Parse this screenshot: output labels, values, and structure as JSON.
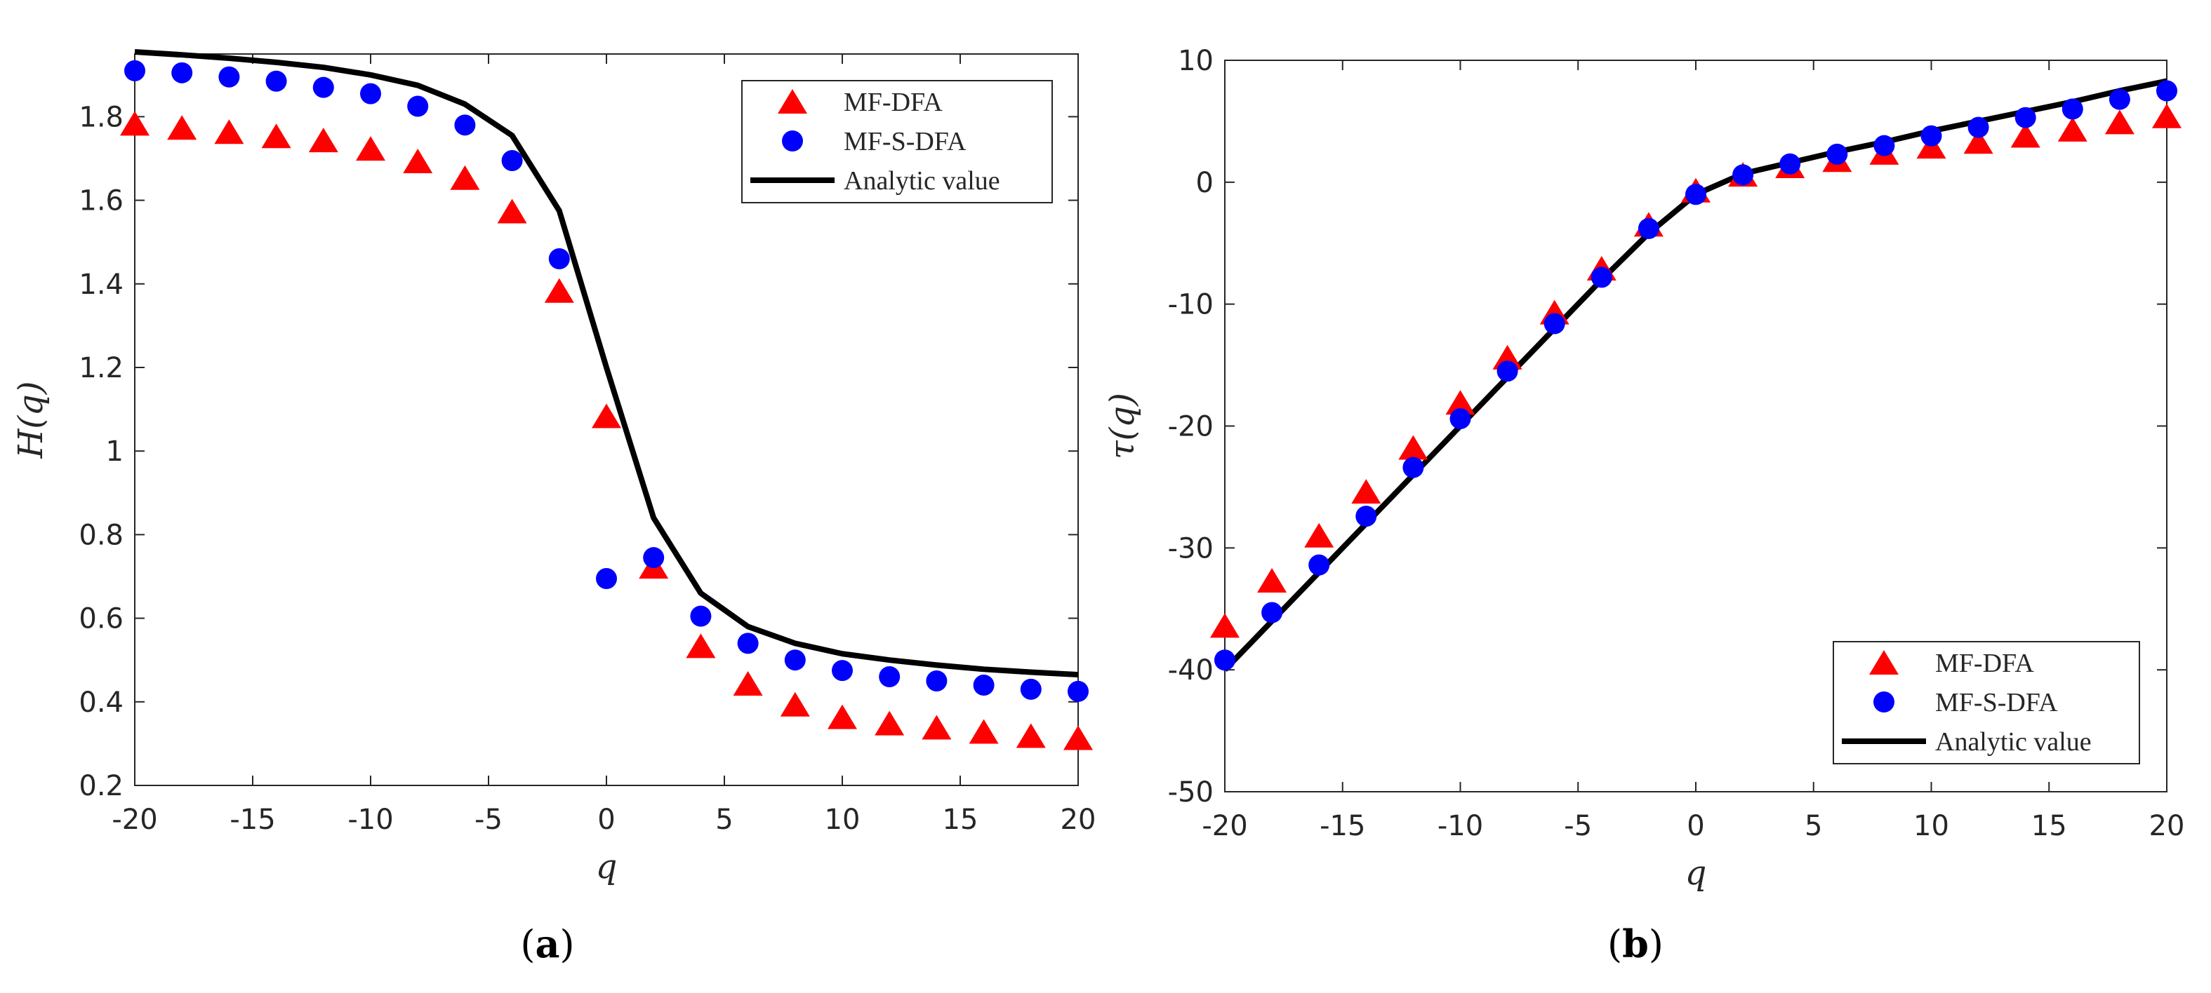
{
  "colors": {
    "mfdfa": "#ff0000",
    "mfsdfa": "#0000ff",
    "analytic": "#000000",
    "axis": "#262626"
  },
  "chart_data": [
    {
      "id": "a",
      "type": "scatter",
      "panel_label": "a",
      "xlabel": "q",
      "ylabel": "H(q)",
      "xlim": [
        -20,
        20
      ],
      "ylim": [
        0.2,
        1.95
      ],
      "xticks": [
        -20,
        -15,
        -10,
        -5,
        0,
        5,
        10,
        15,
        20
      ],
      "xtick_labels": [
        "-20",
        "-15",
        "-10",
        "-5",
        "0",
        "5",
        "10",
        "15",
        "20"
      ],
      "yticks": [
        0.2,
        0.4,
        0.6,
        0.8,
        1,
        1.2,
        1.4,
        1.6,
        1.8
      ],
      "ytick_labels": [
        "0.2",
        "0.4",
        "0.6",
        "0.8",
        "1",
        "1.2",
        "1.4",
        "1.6",
        "1.8"
      ],
      "legend_position": "top-right",
      "series": [
        {
          "name": "MF-DFA",
          "marker": "triangle",
          "color": "#ff0000",
          "x": [
            -20,
            -18,
            -16,
            -14,
            -12,
            -10,
            -8,
            -6,
            -4,
            -2,
            0,
            2,
            4,
            6,
            8,
            10,
            12,
            14,
            16,
            18,
            20
          ],
          "y": [
            1.78,
            1.77,
            1.76,
            1.75,
            1.74,
            1.72,
            1.69,
            1.65,
            1.57,
            1.38,
            1.08,
            0.72,
            0.53,
            0.44,
            0.39,
            0.36,
            0.345,
            0.335,
            0.325,
            0.315,
            0.31
          ]
        },
        {
          "name": "MF-S-DFA",
          "marker": "circle",
          "color": "#0000ff",
          "x": [
            -20,
            -18,
            -16,
            -14,
            -12,
            -10,
            -8,
            -6,
            -4,
            -2,
            0,
            2,
            4,
            6,
            8,
            10,
            12,
            14,
            16,
            18,
            20
          ],
          "y": [
            1.91,
            1.905,
            1.895,
            1.885,
            1.87,
            1.855,
            1.825,
            1.78,
            1.695,
            1.46,
            0.695,
            0.745,
            0.605,
            0.54,
            0.5,
            0.475,
            0.46,
            0.45,
            0.44,
            0.43,
            0.425
          ]
        },
        {
          "name": "Analytic value",
          "marker": "line",
          "color": "#000000",
          "x": [
            -20,
            -18,
            -16,
            -14,
            -12,
            -10,
            -8,
            -6,
            -4,
            -2,
            0,
            2,
            4,
            6,
            8,
            10,
            12,
            14,
            16,
            18,
            20
          ],
          "y": [
            1.955,
            1.948,
            1.94,
            1.93,
            1.918,
            1.9,
            1.875,
            1.83,
            1.755,
            1.575,
            1.2,
            0.84,
            0.66,
            0.58,
            0.54,
            0.515,
            0.5,
            0.488,
            0.478,
            0.471,
            0.465
          ]
        }
      ]
    },
    {
      "id": "b",
      "type": "scatter",
      "panel_label": "b",
      "xlabel": "q",
      "ylabel": "τ(q)",
      "xlim": [
        -20,
        20
      ],
      "ylim": [
        -50,
        10
      ],
      "xticks": [
        -20,
        -15,
        -10,
        -5,
        0,
        5,
        10,
        15,
        20
      ],
      "xtick_labels": [
        "-20",
        "-15",
        "-10",
        "-5",
        "0",
        "5",
        "10",
        "15",
        "20"
      ],
      "yticks": [
        -50,
        -40,
        -30,
        -20,
        -10,
        0,
        10
      ],
      "ytick_labels": [
        "-50",
        "-40",
        "-30",
        "-20",
        "-10",
        "0",
        "10"
      ],
      "legend_position": "bottom-right",
      "series": [
        {
          "name": "MF-DFA",
          "marker": "triangle",
          "color": "#ff0000",
          "x": [
            -20,
            -18,
            -16,
            -14,
            -12,
            -10,
            -8,
            -6,
            -4,
            -2,
            0,
            2,
            4,
            6,
            8,
            10,
            12,
            14,
            16,
            18,
            20
          ],
          "y": [
            -36.5,
            -32.8,
            -29.1,
            -25.5,
            -21.9,
            -18.2,
            -14.5,
            -10.8,
            -7.2,
            -3.6,
            -0.8,
            0.5,
            1.2,
            1.7,
            2.3,
            2.8,
            3.2,
            3.7,
            4.2,
            4.8,
            5.3
          ]
        },
        {
          "name": "MF-S-DFA",
          "marker": "circle",
          "color": "#0000ff",
          "x": [
            -20,
            -18,
            -16,
            -14,
            -12,
            -10,
            -8,
            -6,
            -4,
            -2,
            0,
            2,
            4,
            6,
            8,
            10,
            12,
            14,
            16,
            18,
            20
          ],
          "y": [
            -39.2,
            -35.3,
            -31.4,
            -27.4,
            -23.4,
            -19.4,
            -15.5,
            -11.6,
            -7.8,
            -3.8,
            -1.0,
            0.6,
            1.5,
            2.3,
            3.0,
            3.8,
            4.5,
            5.3,
            6.0,
            6.8,
            7.5
          ]
        },
        {
          "name": "Analytic value",
          "marker": "line",
          "color": "#000000",
          "x": [
            -20,
            -18,
            -16,
            -14,
            -12,
            -10,
            -8,
            -6,
            -4,
            -2,
            0,
            2,
            4,
            6,
            8,
            10,
            12,
            14,
            16,
            18,
            20
          ],
          "y": [
            -40.0,
            -36.0,
            -32.0,
            -28.0,
            -24.0,
            -20.0,
            -16.0,
            -12.0,
            -8.0,
            -4.2,
            -1.0,
            0.7,
            1.6,
            2.5,
            3.3,
            4.2,
            5.0,
            5.8,
            6.6,
            7.5,
            8.3
          ]
        }
      ]
    }
  ]
}
